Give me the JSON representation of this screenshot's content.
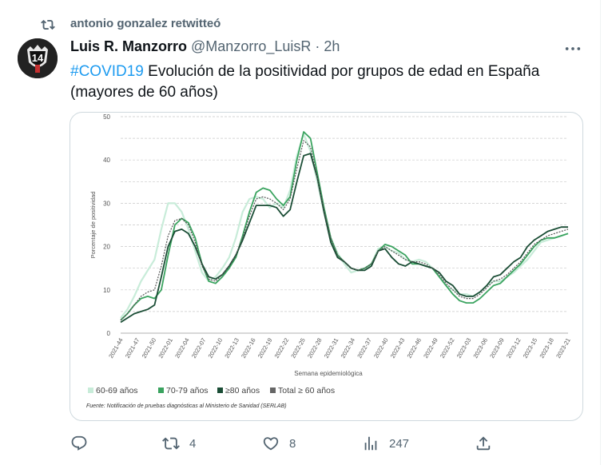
{
  "retweet": {
    "text": "antonio gonzalez retwitteó"
  },
  "tweet": {
    "author_name": "Luis R. Manzorro",
    "author_handle": "@Manzorro_LuisR",
    "separator": "·",
    "time": "2h",
    "hashtag": "#COVID19",
    "text_line1": " Evolución de la positividad por grupos de edad en España",
    "text_line2": "(mayores de 60 años)",
    "avatar_badge": "14"
  },
  "stats": {
    "retweets": "4",
    "likes": "8",
    "views": "247"
  },
  "icons": [
    "retweet-icon",
    "more-icon",
    "reply-icon",
    "like-icon",
    "views-icon",
    "share-icon"
  ],
  "colors": {
    "accent": "#1d9bf0",
    "s6069": "#c8ecd9",
    "s7079": "#3aa35f",
    "s80": "#1a4d35",
    "total": "#666666"
  },
  "chart_data": {
    "type": "line",
    "xlabel": "Semana epidemiológica",
    "ylabel": "Porcentaje de positividad",
    "ylim": [
      0,
      50
    ],
    "yticks": [
      "0",
      "10",
      "20",
      "30",
      "40",
      "50"
    ],
    "xticks": [
      "2021-44",
      "2021-47",
      "2021-50",
      "2022-01",
      "2022-04",
      "2022-07",
      "2022-10",
      "2022-13",
      "2022-16",
      "2022-19",
      "2022-22",
      "2022-25",
      "2022-28",
      "2022-31",
      "2022-34",
      "2022-37",
      "2022-40",
      "2022-43",
      "2022-46",
      "2022-49",
      "2022-52",
      "2023-03",
      "2023-06",
      "2023-09",
      "2023-12",
      "2023-15",
      "2023-18",
      "2023-21"
    ],
    "grid": "horizontal dashed",
    "legend_position": "bottom-left",
    "source": "Fuente: Notificación de pruebas diagnósticas al Ministerio de Sanidad (SERLAB)",
    "legend": [
      {
        "label": "60-69 años",
        "color": "#c8ecd9"
      },
      {
        "label": "70-79 años",
        "color": "#3aa35f"
      },
      {
        "label": "≥80 años",
        "color": "#1a4d35"
      },
      {
        "label": "Total ≥ 60 años",
        "color": "#666666"
      }
    ],
    "series": [
      {
        "name": "60-69 años",
        "values": [
          3.5,
          5.5,
          8.5,
          12,
          14.5,
          17,
          24,
          30,
          30,
          28,
          24,
          19,
          14,
          12,
          13,
          15,
          17.5,
          22,
          28,
          31,
          31.5,
          31,
          29,
          30,
          29,
          33,
          41,
          46,
          42,
          35,
          28,
          22,
          18.5,
          16,
          14,
          14.5,
          15,
          16,
          19.5,
          20,
          19,
          18.5,
          17,
          16.5,
          17,
          16.5,
          15,
          13,
          11,
          10,
          9,
          9,
          8.5,
          9.5,
          11,
          12,
          12,
          13,
          14,
          15.5,
          17,
          19,
          21,
          21.5,
          22,
          22.5,
          23
        ]
      },
      {
        "name": "70-79 años",
        "values": [
          3,
          4.5,
          6.5,
          8,
          8.5,
          8,
          10,
          18,
          25,
          26.5,
          25.5,
          22,
          16,
          12,
          11.5,
          13,
          15,
          17.5,
          22.5,
          28,
          32.5,
          33.5,
          33,
          31,
          29.5,
          31.5,
          40,
          46.5,
          45,
          37,
          29,
          22,
          18,
          16.5,
          15,
          14.5,
          15,
          16,
          19,
          20.5,
          20,
          19,
          18,
          16,
          16,
          15.5,
          15,
          13,
          11,
          9,
          7.5,
          7,
          7,
          8,
          9.5,
          11,
          11.5,
          13,
          14.5,
          16,
          18,
          20,
          21.5,
          22,
          22,
          22.5,
          23
        ]
      },
      {
        "name": "≥80 años",
        "values": [
          2.5,
          3.5,
          4.5,
          5,
          5.5,
          6.5,
          13,
          20,
          23.5,
          24,
          23,
          20,
          16,
          13,
          12.5,
          13.5,
          15.5,
          18,
          21.5,
          25.5,
          29.5,
          29.5,
          29.5,
          29,
          27,
          28.5,
          35,
          41,
          41.5,
          36,
          28,
          21,
          17.5,
          16.5,
          15,
          14.5,
          14.5,
          15.5,
          19,
          19.5,
          17.5,
          16,
          15.5,
          16.5,
          16,
          15.5,
          15,
          14,
          12,
          11,
          9,
          8.5,
          8.5,
          9.5,
          11,
          13,
          13.5,
          15,
          16.5,
          17.5,
          20,
          21.5,
          22.5,
          23.5,
          24,
          24.5,
          24.5
        ]
      },
      {
        "name": "Total ≥ 60 años",
        "values": [
          3,
          4.5,
          6.5,
          8.5,
          9.5,
          10,
          15.5,
          22.5,
          26,
          26.5,
          25,
          21,
          15.5,
          12.5,
          12,
          13.5,
          15.5,
          18,
          22,
          27,
          31,
          31.5,
          31,
          30,
          28.5,
          31,
          38,
          44.5,
          43,
          36,
          28.5,
          22,
          18,
          16.5,
          15,
          14.5,
          15,
          16,
          19,
          20,
          19,
          18,
          17,
          16.5,
          16.5,
          16,
          15,
          13.5,
          11.5,
          10,
          8.5,
          8,
          8,
          9,
          10.5,
          12,
          12.5,
          13.5,
          15,
          16.5,
          18.5,
          20.5,
          21.5,
          22.5,
          23,
          23.5,
          24
        ]
      }
    ]
  }
}
